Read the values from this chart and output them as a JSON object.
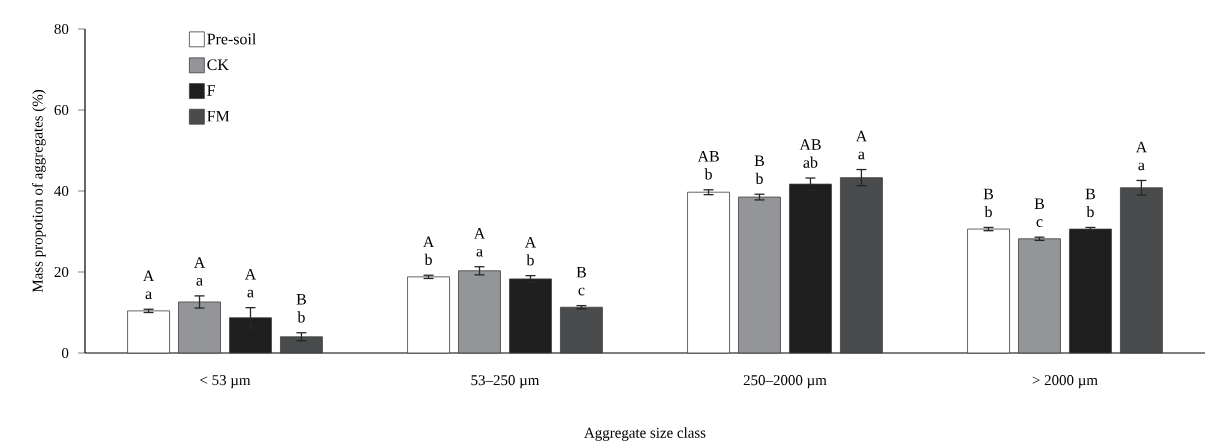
{
  "chart_data": {
    "type": "bar",
    "xlabel": "Aggregate size class",
    "ylabel": "Mass propotion of aggregates (%)",
    "categories": [
      "< 53 µm",
      "53–250 µm",
      "250–2000 µm",
      "> 2000 µm"
    ],
    "series": [
      {
        "name": "Pre-soil",
        "color": "#ffffff",
        "values": [
          10.4,
          18.8,
          39.7,
          30.6
        ],
        "errors": [
          0.4,
          0.4,
          0.6,
          0.4
        ]
      },
      {
        "name": "CK",
        "color": "#939598",
        "values": [
          12.6,
          20.3,
          38.5,
          28.2
        ],
        "errors": [
          1.5,
          1.0,
          0.7,
          0.4
        ]
      },
      {
        "name": "F",
        "color": "#1e1e1e",
        "values": [
          8.7,
          18.3,
          41.7,
          30.6
        ],
        "errors": [
          2.5,
          0.8,
          1.5,
          0.4
        ]
      },
      {
        "name": "FM",
        "color": "#4a4b4d",
        "values": [
          4.0,
          11.3,
          43.3,
          40.8
        ],
        "errors": [
          1.0,
          0.4,
          2.0,
          1.8
        ]
      }
    ],
    "ylim": [
      0,
      80
    ],
    "yticks": [
      0,
      20,
      40,
      60,
      80
    ],
    "legend": "top left",
    "annotations": [
      "A",
      "a",
      "A",
      "a",
      "A",
      "a",
      "B",
      "b",
      "A",
      "b",
      "A",
      "a",
      "A",
      "b",
      "B",
      "c",
      "AB",
      "b",
      "B",
      "b",
      "AB",
      "ab",
      "A",
      "a",
      "B",
      "b",
      "B",
      "c",
      "B",
      "b",
      "A",
      "a"
    ]
  }
}
